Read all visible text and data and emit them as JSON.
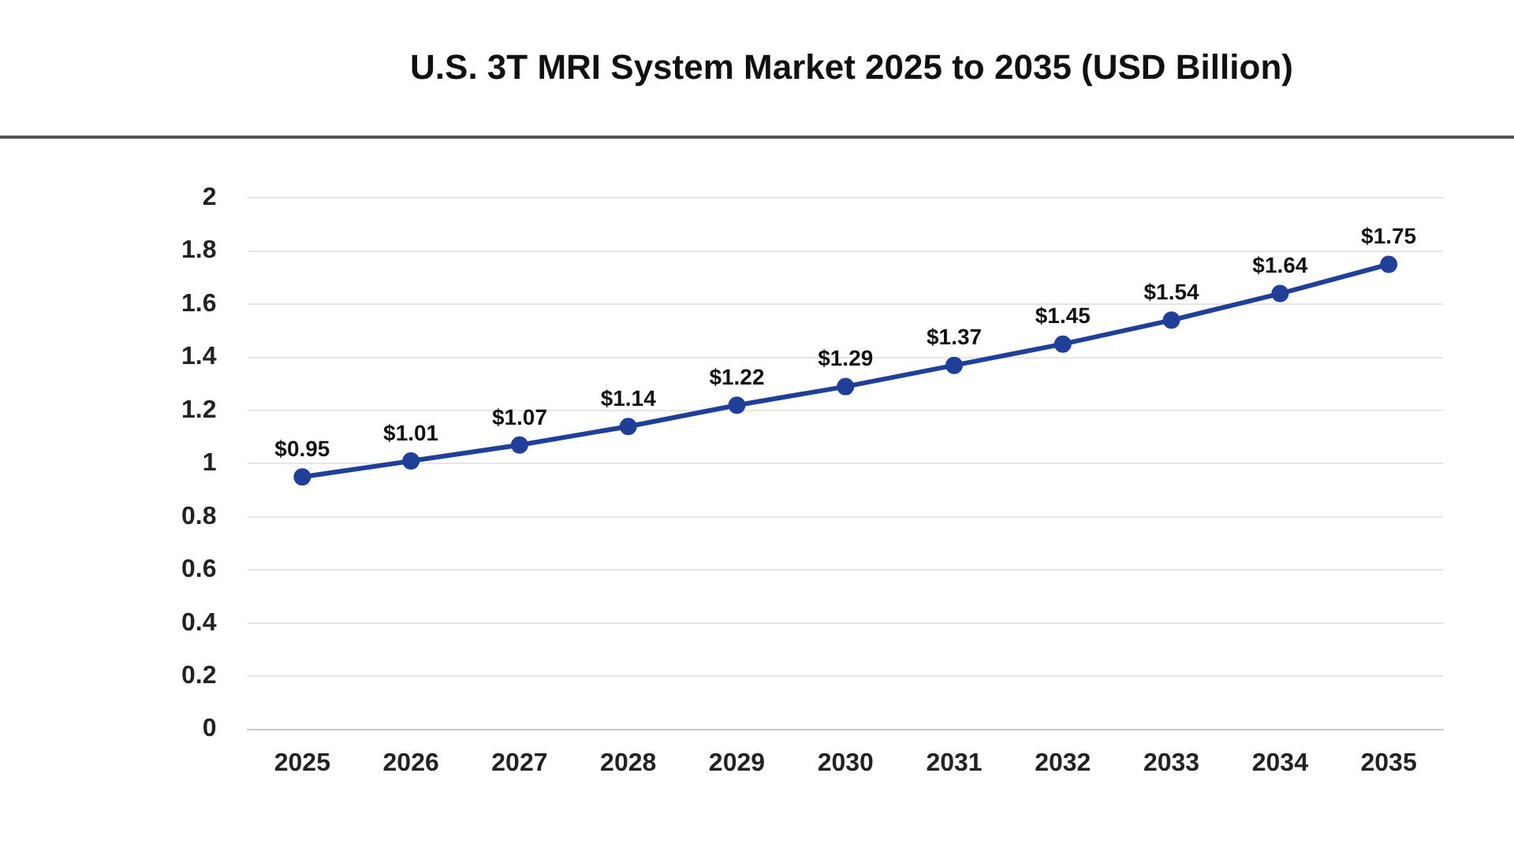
{
  "chart_data": {
    "type": "line",
    "title": "U.S. 3T MRI System Market 2025 to 2035 (USD Billion)",
    "categories": [
      "2025",
      "2026",
      "2027",
      "2028",
      "2029",
      "2030",
      "2031",
      "2032",
      "2033",
      "2034",
      "2035"
    ],
    "series": [
      {
        "color": "#1f3f99",
        "values": [
          0.95,
          1.01,
          1.07,
          1.14,
          1.22,
          1.29,
          1.37,
          1.45,
          1.54,
          1.64,
          1.75
        ],
        "value_labels": [
          "$0.95",
          "$1.01",
          "$1.07",
          "$1.14",
          "$1.22",
          "$1.29",
          "$1.37",
          "$1.45",
          "$1.54",
          "$1.64",
          "$1.75"
        ]
      }
    ],
    "ylim": [
      0,
      2
    ],
    "yticks": [
      0,
      0.2,
      0.4,
      0.6,
      0.8,
      1,
      1.2,
      1.4,
      1.6,
      1.8,
      2
    ],
    "grid": "y",
    "marker": "circle",
    "line_style": "solid",
    "legend": false
  }
}
